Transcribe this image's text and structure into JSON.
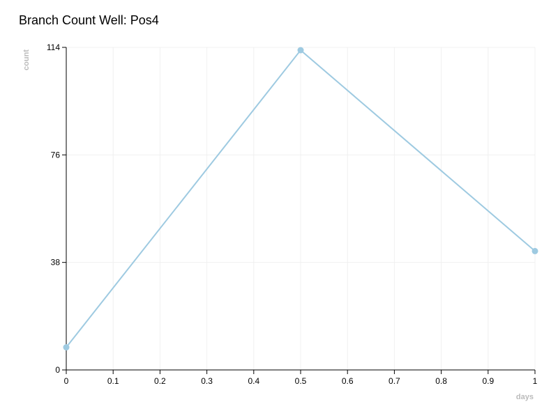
{
  "chart_data": {
    "type": "line",
    "title": "Branch Count Well: Pos4",
    "x_label": "days",
    "y_label": "count",
    "x": [
      0,
      0.5,
      1
    ],
    "series": [
      {
        "name": "Pos4",
        "color": "#9ecae1",
        "values": [
          8,
          113,
          42
        ]
      }
    ],
    "xlim": [
      0,
      1
    ],
    "xticks": [
      0,
      0.1,
      0.2,
      0.3,
      0.4,
      0.5,
      0.6,
      0.7,
      0.8,
      0.9,
      1
    ],
    "ylim": [
      0,
      114
    ],
    "yticks": [
      0,
      38,
      76,
      114
    ],
    "grid": true
  }
}
